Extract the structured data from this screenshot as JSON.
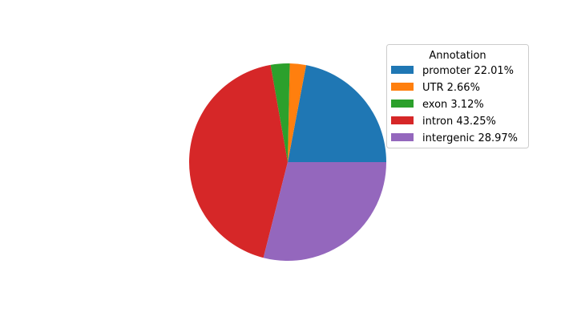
{
  "chart_data": {
    "type": "pie",
    "legend_title": "Annotation",
    "legend_placement": "upper-right",
    "start_angle_deg": 0,
    "direction": "counterclockwise",
    "slices": [
      {
        "label": "promoter 22.01%",
        "value": 22.01,
        "color": "#1f77b4"
      },
      {
        "label": "UTR 2.66%",
        "value": 2.66,
        "color": "#ff7f0e"
      },
      {
        "label": "exon 3.12%",
        "value": 3.12,
        "color": "#2ca02c"
      },
      {
        "label": "intron 43.25%",
        "value": 43.25,
        "color": "#d62728"
      },
      {
        "label": "intergenic 28.97%",
        "value": 28.97,
        "color": "#9467bd"
      }
    ]
  }
}
